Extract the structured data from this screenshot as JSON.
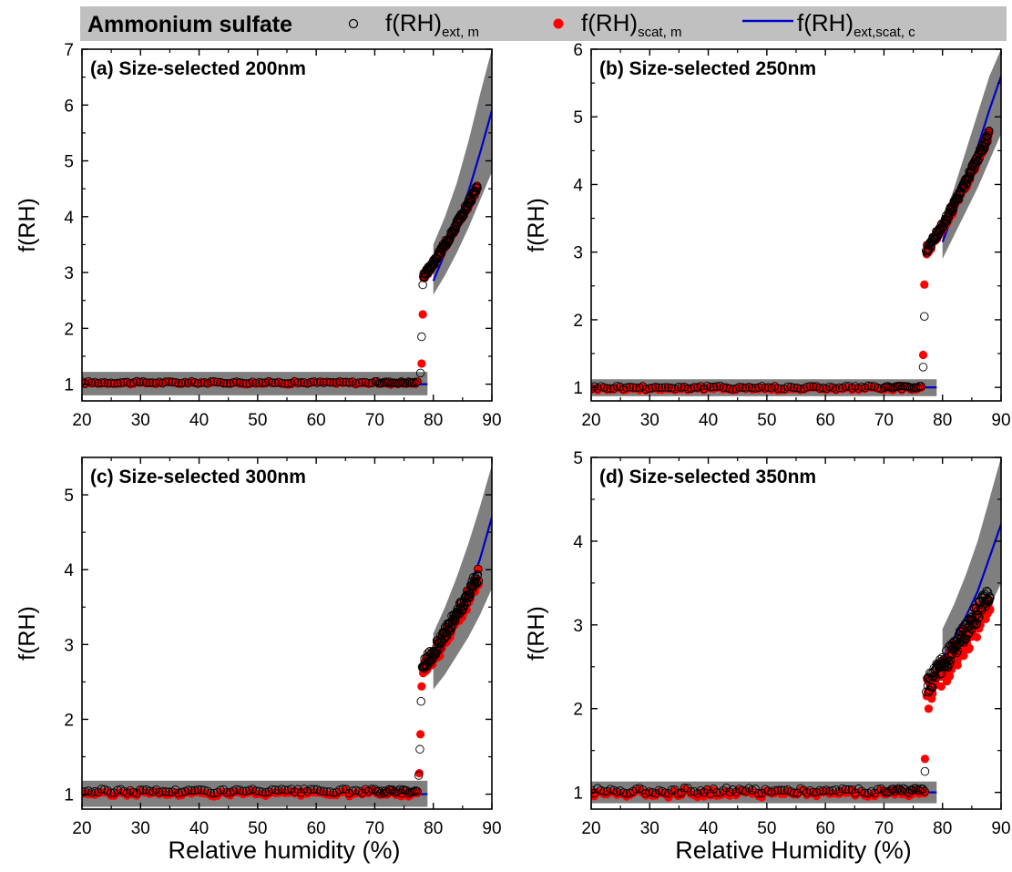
{
  "legend": {
    "title": "Ammonium sulfate",
    "items": [
      {
        "label_main": "f(RH)",
        "label_sub": "ext, m",
        "marker": "open-circle"
      },
      {
        "label_main": "f(RH)",
        "label_sub": "scat, m",
        "marker": "filled-circle"
      },
      {
        "label_main": "f(RH)",
        "label_sub": "ext,scat, c",
        "marker": "line"
      }
    ]
  },
  "colors": {
    "ext_marker": "#000000",
    "scat_marker": "#ff0000",
    "calc_line": "#0000cc",
    "uncertainty_band": "#7f7f7f",
    "legend_bg": "#c0c0c0"
  },
  "x_titles": [
    "Relative humidity (%)",
    "Relative Humidity (%)"
  ],
  "chart_data": [
    {
      "type": "scatter",
      "title": "(a) Size-selected 200nm",
      "xlabel": "Relative humidity (%)",
      "ylabel": "f(RH)",
      "xlim": [
        20,
        90
      ],
      "ylim": [
        0.7,
        7
      ],
      "xticks": [
        20,
        30,
        40,
        50,
        60,
        70,
        80,
        90
      ],
      "yticks": [
        1,
        2,
        3,
        4,
        5,
        6,
        7
      ],
      "grid": false,
      "deliquescence_rh": 78,
      "low_rh": {
        "x_range": [
          20,
          77.5
        ],
        "ext_mean": 1.03,
        "scat_mean": 1.02,
        "noise": 0.02
      },
      "transition": {
        "ext": [
          [
            77.8,
            1.2
          ],
          [
            78.0,
            1.85
          ],
          [
            78.2,
            2.78
          ]
        ],
        "scat": [
          [
            78.0,
            1.37
          ],
          [
            78.2,
            2.25
          ]
        ]
      },
      "high_rh": {
        "x_range": [
          78.3,
          87.6
        ],
        "y_start": 2.95,
        "y_end": 4.55,
        "noise": 0.06,
        "scat_offset": 0.03
      },
      "calc_line": [
        [
          20,
          1.0
        ],
        [
          79,
          1.0
        ],
        [
          80,
          2.85
        ],
        [
          82,
          3.35
        ],
        [
          84,
          3.85
        ],
        [
          86,
          4.45
        ],
        [
          88,
          5.15
        ],
        [
          90,
          5.9
        ]
      ],
      "band_low": {
        "x_range": [
          20,
          79
        ],
        "y_range": [
          0.8,
          1.22
        ]
      },
      "band_high": {
        "upper": [
          [
            80,
            3.5
          ],
          [
            82,
            4.0
          ],
          [
            84,
            4.6
          ],
          [
            86,
            5.35
          ],
          [
            88,
            6.2
          ],
          [
            90,
            7.0
          ]
        ],
        "lower": [
          [
            80,
            2.6
          ],
          [
            82,
            2.95
          ],
          [
            84,
            3.35
          ],
          [
            86,
            3.8
          ],
          [
            88,
            4.3
          ],
          [
            90,
            4.8
          ]
        ]
      }
    },
    {
      "type": "scatter",
      "title": "(b) Size-selected 250nm",
      "xlabel": "",
      "ylabel": "f(RH)",
      "xlim": [
        20,
        90
      ],
      "ylim": [
        0.8,
        6
      ],
      "xticks": [
        20,
        30,
        40,
        50,
        60,
        70,
        80,
        90
      ],
      "yticks": [
        1,
        2,
        3,
        4,
        5,
        6
      ],
      "grid": false,
      "deliquescence_rh": 77,
      "low_rh": {
        "x_range": [
          20,
          76.5
        ],
        "ext_mean": 1.0,
        "scat_mean": 0.98,
        "noise": 0.025
      },
      "transition": {
        "ext": [
          [
            76.7,
            1.3
          ],
          [
            76.9,
            2.05
          ],
          [
            77.2,
            3.02
          ]
        ],
        "scat": [
          [
            76.7,
            1.48
          ],
          [
            76.9,
            2.52
          ]
        ]
      },
      "high_rh": {
        "x_range": [
          77.3,
          88.0
        ],
        "y_start": 3.05,
        "y_end": 4.75,
        "noise": 0.06,
        "scat_offset": 0.05
      },
      "calc_line": [
        [
          20,
          1.0
        ],
        [
          79,
          1.0
        ],
        [
          80,
          3.15
        ],
        [
          82,
          3.6
        ],
        [
          84,
          4.05
        ],
        [
          86,
          4.55
        ],
        [
          88,
          5.1
        ],
        [
          90,
          5.6
        ]
      ],
      "band_low": {
        "x_range": [
          20,
          79
        ],
        "y_range": [
          0.87,
          1.12
        ]
      },
      "band_high": {
        "upper": [
          [
            80,
            3.45
          ],
          [
            82,
            3.95
          ],
          [
            84,
            4.5
          ],
          [
            86,
            5.05
          ],
          [
            88,
            5.6
          ],
          [
            90,
            6.0
          ]
        ],
        "lower": [
          [
            80,
            2.9
          ],
          [
            82,
            3.25
          ],
          [
            84,
            3.6
          ],
          [
            86,
            3.95
          ],
          [
            88,
            4.35
          ],
          [
            90,
            4.75
          ]
        ]
      }
    },
    {
      "type": "scatter",
      "title": "(c) Size-selected 300nm",
      "xlabel": "Relative humidity (%)",
      "ylabel": "f(RH)",
      "xlim": [
        20,
        90
      ],
      "ylim": [
        0.8,
        5.5
      ],
      "xticks": [
        20,
        30,
        40,
        50,
        60,
        70,
        80,
        90
      ],
      "yticks": [
        1,
        2,
        3,
        4,
        5
      ],
      "grid": false,
      "deliquescence_rh": 77.8,
      "low_rh": {
        "x_range": [
          20,
          77.3
        ],
        "ext_mean": 1.04,
        "scat_mean": 1.01,
        "noise": 0.03
      },
      "transition": {
        "ext": [
          [
            77.5,
            1.25
          ],
          [
            77.7,
            1.6
          ],
          [
            77.9,
            2.24
          ],
          [
            78.1,
            2.7
          ]
        ],
        "scat": [
          [
            77.6,
            1.28
          ],
          [
            77.8,
            1.8
          ],
          [
            78.0,
            2.44
          ]
        ]
      },
      "high_rh": {
        "x_range": [
          78.2,
          87.8
        ],
        "y_start": 2.72,
        "y_end": 3.95,
        "noise": 0.09,
        "scat_offset": 0.1
      },
      "calc_line": [
        [
          20,
          1.0
        ],
        [
          79,
          1.0
        ],
        [
          80,
          2.8
        ],
        [
          82,
          3.05
        ],
        [
          84,
          3.35
        ],
        [
          86,
          3.7
        ],
        [
          88,
          4.15
        ],
        [
          90,
          4.7
        ]
      ],
      "band_low": {
        "x_range": [
          20,
          79
        ],
        "y_range": [
          0.83,
          1.18
        ]
      },
      "band_high": {
        "upper": [
          [
            80,
            3.15
          ],
          [
            82,
            3.5
          ],
          [
            84,
            3.9
          ],
          [
            86,
            4.35
          ],
          [
            88,
            4.85
          ],
          [
            90,
            5.4
          ]
        ],
        "lower": [
          [
            80,
            2.4
          ],
          [
            82,
            2.6
          ],
          [
            84,
            2.85
          ],
          [
            86,
            3.1
          ],
          [
            88,
            3.4
          ],
          [
            90,
            3.75
          ]
        ]
      }
    },
    {
      "type": "scatter",
      "title": "(d) Size-selected 350nm",
      "xlabel": "Relative Humidity (%)",
      "ylabel": "f(RH)",
      "xlim": [
        20,
        90
      ],
      "ylim": [
        0.8,
        5
      ],
      "xticks": [
        20,
        30,
        40,
        50,
        60,
        70,
        80,
        90
      ],
      "yticks": [
        1,
        2,
        3,
        4,
        5
      ],
      "grid": false,
      "deliquescence_rh": 77.2,
      "low_rh": {
        "x_range": [
          20,
          77.0
        ],
        "ext_mean": 1.02,
        "scat_mean": 0.99,
        "noise": 0.035
      },
      "transition": {
        "ext": [
          [
            77.0,
            1.25
          ],
          [
            77.2,
            2.2
          ]
        ],
        "scat": [
          [
            77.0,
            1.4
          ],
          [
            77.3,
            2.15
          ]
        ]
      },
      "high_rh": {
        "x_range": [
          77.4,
          88.2
        ],
        "y_start": 2.3,
        "y_end": 3.4,
        "noise": 0.12,
        "scat_offset": 0.2
      },
      "calc_line": [
        [
          20,
          1.0
        ],
        [
          79,
          1.0
        ],
        [
          80,
          2.6
        ],
        [
          82,
          2.85
        ],
        [
          84,
          3.1
        ],
        [
          86,
          3.4
        ],
        [
          88,
          3.8
        ],
        [
          90,
          4.2
        ]
      ],
      "band_low": {
        "x_range": [
          20,
          79
        ],
        "y_range": [
          0.87,
          1.13
        ]
      },
      "band_high": {
        "upper": [
          [
            80,
            2.95
          ],
          [
            82,
            3.25
          ],
          [
            84,
            3.6
          ],
          [
            86,
            4.0
          ],
          [
            88,
            4.5
          ],
          [
            90,
            5.0
          ]
        ],
        "lower": [
          [
            80,
            2.3
          ],
          [
            82,
            2.5
          ],
          [
            84,
            2.7
          ],
          [
            86,
            2.95
          ],
          [
            88,
            3.2
          ],
          [
            90,
            3.5
          ]
        ]
      }
    }
  ]
}
